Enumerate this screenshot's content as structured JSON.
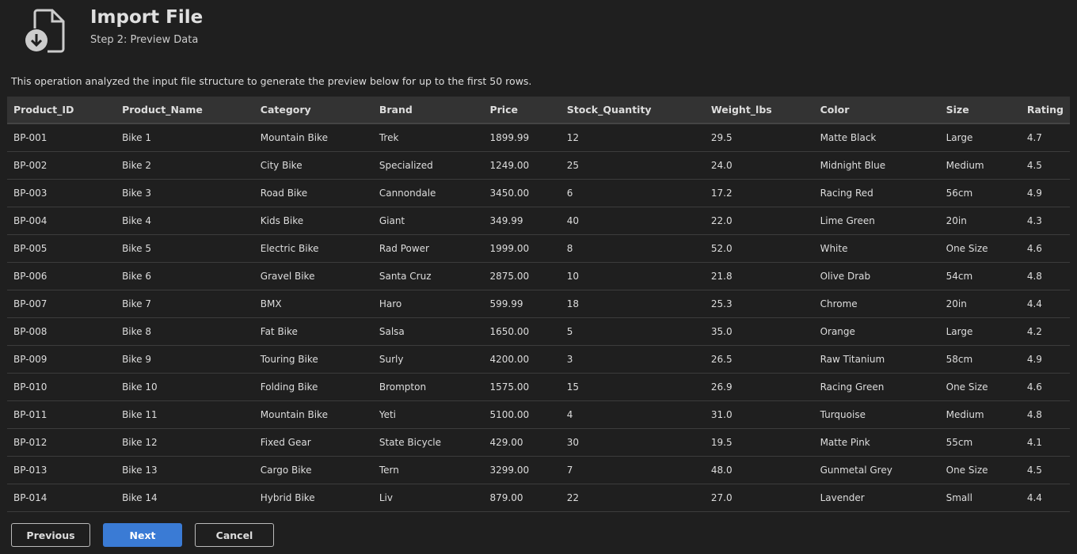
{
  "header": {
    "title": "Import File",
    "subtitle": "Step 2: Preview Data",
    "icon": "file-import-icon"
  },
  "description": "This operation analyzed the input file structure to generate the preview below for up to the first 50 rows.",
  "table": {
    "columns": [
      "Product_ID",
      "Product_Name",
      "Category",
      "Brand",
      "Price",
      "Stock_Quantity",
      "Weight_lbs",
      "Color",
      "Size",
      "Rating"
    ],
    "rows": [
      [
        "BP-001",
        "Bike 1",
        "Mountain Bike",
        "Trek",
        "1899.99",
        "12",
        "29.5",
        "Matte Black",
        "Large",
        "4.7"
      ],
      [
        "BP-002",
        "Bike 2",
        "City Bike",
        "Specialized",
        "1249.00",
        "25",
        "24.0",
        "Midnight Blue",
        "Medium",
        "4.5"
      ],
      [
        "BP-003",
        "Bike 3",
        "Road Bike",
        "Cannondale",
        "3450.00",
        "6",
        "17.2",
        "Racing Red",
        "56cm",
        "4.9"
      ],
      [
        "BP-004",
        "Bike 4",
        "Kids Bike",
        "Giant",
        "349.99",
        "40",
        "22.0",
        "Lime Green",
        "20in",
        "4.3"
      ],
      [
        "BP-005",
        "Bike 5",
        "Electric Bike",
        "Rad Power",
        "1999.00",
        "8",
        "52.0",
        "White",
        "One Size",
        "4.6"
      ],
      [
        "BP-006",
        "Bike 6",
        "Gravel Bike",
        "Santa Cruz",
        "2875.00",
        "10",
        "21.8",
        "Olive Drab",
        "54cm",
        "4.8"
      ],
      [
        "BP-007",
        "Bike 7",
        "BMX",
        "Haro",
        "599.99",
        "18",
        "25.3",
        "Chrome",
        "20in",
        "4.4"
      ],
      [
        "BP-008",
        "Bike 8",
        "Fat Bike",
        "Salsa",
        "1650.00",
        "5",
        "35.0",
        "Orange",
        "Large",
        "4.2"
      ],
      [
        "BP-009",
        "Bike 9",
        "Touring Bike",
        "Surly",
        "4200.00",
        "3",
        "26.5",
        "Raw Titanium",
        "58cm",
        "4.9"
      ],
      [
        "BP-010",
        "Bike 10",
        "Folding Bike",
        "Brompton",
        "1575.00",
        "15",
        "26.9",
        "Racing Green",
        "One Size",
        "4.6"
      ],
      [
        "BP-011",
        "Bike 11",
        "Mountain Bike",
        "Yeti",
        "5100.00",
        "4",
        "31.0",
        "Turquoise",
        "Medium",
        "4.8"
      ],
      [
        "BP-012",
        "Bike 12",
        "Fixed Gear",
        "State Bicycle",
        "429.00",
        "30",
        "19.5",
        "Matte Pink",
        "55cm",
        "4.1"
      ],
      [
        "BP-013",
        "Bike 13",
        "Cargo Bike",
        "Tern",
        "3299.00",
        "7",
        "48.0",
        "Gunmetal Grey",
        "One Size",
        "4.5"
      ],
      [
        "BP-014",
        "Bike 14",
        "Hybrid Bike",
        "Liv",
        "879.00",
        "22",
        "27.0",
        "Lavender",
        "Small",
        "4.4"
      ]
    ]
  },
  "buttons": {
    "previous": "Previous",
    "next": "Next",
    "cancel": "Cancel"
  },
  "colors": {
    "accent": "#3a7bd5",
    "background": "#1f1f1f"
  }
}
